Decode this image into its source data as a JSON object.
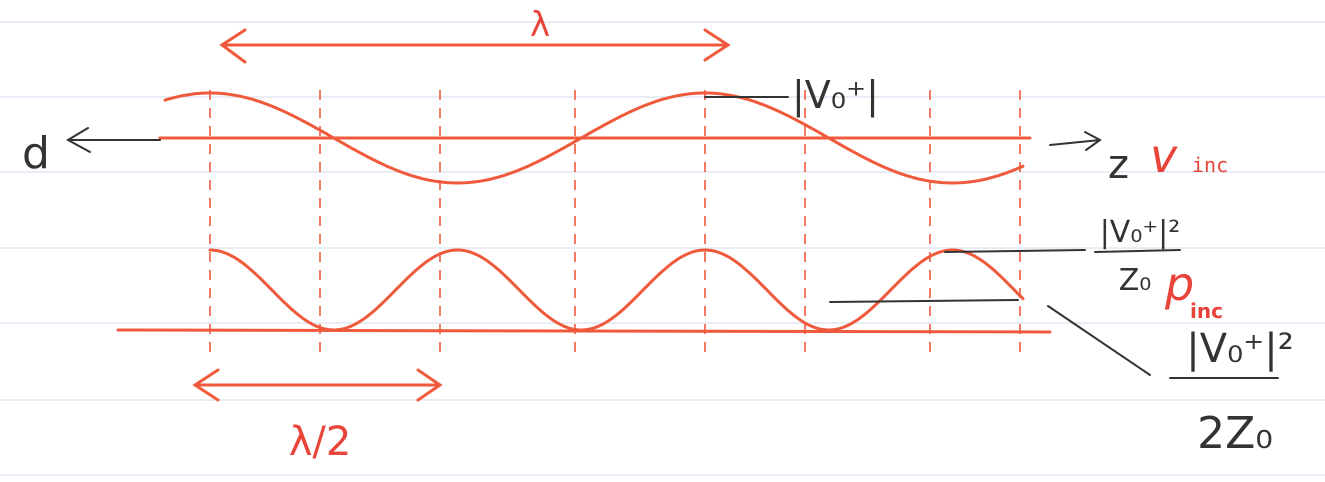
{
  "labels": {
    "wavelength": "λ",
    "half_wavelength": "λ/2",
    "d_axis": "d",
    "z_axis": "z",
    "voltage": {
      "symbol": "v",
      "subscript": "inc"
    },
    "power": {
      "symbol": "p",
      "subscript": "inc"
    },
    "amplitude": "|V₀⁺|",
    "peak_power": {
      "numerator": "|V₀⁺|²",
      "denominator": "Z₀"
    },
    "average_power": {
      "numerator": "|V₀⁺|²",
      "denominator": "2Z₀"
    }
  }
}
